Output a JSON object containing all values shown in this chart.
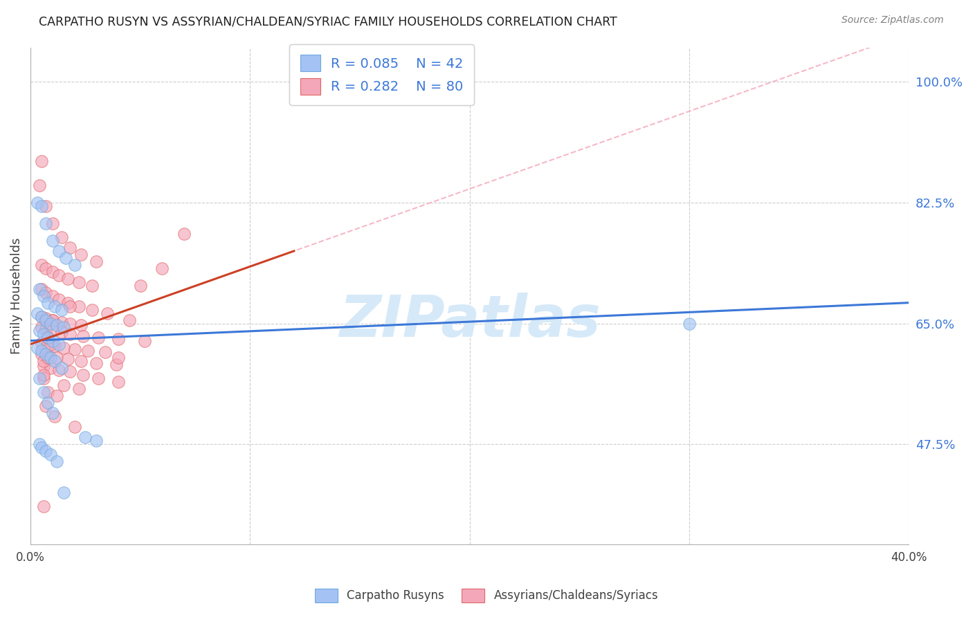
{
  "title": "CARPATHO RUSYN VS ASSYRIAN/CHALDEAN/SYRIAC FAMILY HOUSEHOLDS CORRELATION CHART",
  "source": "Source: ZipAtlas.com",
  "ylabel": "Family Households",
  "xlim": [
    0.0,
    40.0
  ],
  "ylim": [
    33.0,
    105.0
  ],
  "yticks": [
    47.5,
    65.0,
    82.5,
    100.0
  ],
  "blue_R": 0.085,
  "blue_N": 42,
  "pink_R": 0.282,
  "pink_N": 80,
  "blue_color": "#a4c2f4",
  "pink_color": "#f4a7b9",
  "blue_edge_color": "#6fa8dc",
  "pink_edge_color": "#e06666",
  "blue_line_color": "#3c78d8",
  "pink_line_color": "#cc4125",
  "pink_dash_color": "#f4a7b9",
  "watermark_color": "#d6e9f8",
  "figsize": [
    14.06,
    8.92
  ],
  "dpi": 100,
  "blue_x": [
    0.3,
    0.5,
    0.7,
    1.0,
    1.3,
    1.6,
    2.0,
    0.4,
    0.6,
    0.8,
    1.1,
    1.4,
    0.3,
    0.5,
    0.7,
    0.9,
    1.2,
    1.5,
    0.4,
    0.6,
    0.8,
    1.0,
    1.3,
    0.3,
    0.5,
    0.7,
    0.9,
    1.1,
    1.4,
    0.4,
    0.6,
    0.8,
    1.0,
    2.5,
    3.0,
    0.4,
    0.5,
    0.7,
    0.9,
    1.2,
    1.5,
    30.0
  ],
  "blue_y": [
    82.5,
    82.0,
    79.5,
    77.0,
    75.5,
    74.5,
    73.5,
    70.0,
    69.0,
    68.0,
    67.5,
    67.0,
    66.5,
    66.0,
    65.5,
    65.0,
    64.8,
    64.5,
    64.0,
    63.5,
    63.0,
    62.5,
    62.0,
    61.5,
    61.0,
    60.5,
    60.0,
    59.5,
    58.5,
    57.0,
    55.0,
    53.5,
    52.0,
    48.5,
    48.0,
    47.5,
    47.0,
    46.5,
    46.0,
    45.0,
    40.5,
    65.0
  ],
  "pink_x": [
    0.5,
    0.4,
    0.7,
    1.0,
    1.4,
    1.8,
    2.3,
    3.0,
    0.5,
    0.7,
    1.0,
    1.3,
    1.7,
    2.2,
    2.8,
    0.5,
    0.7,
    1.0,
    1.3,
    1.7,
    2.2,
    2.8,
    3.5,
    0.5,
    0.7,
    1.0,
    1.4,
    1.8,
    2.3,
    0.5,
    0.7,
    1.0,
    1.4,
    1.8,
    2.4,
    3.1,
    4.0,
    5.2,
    0.5,
    0.8,
    1.1,
    1.5,
    2.0,
    2.6,
    3.4,
    0.5,
    0.8,
    1.2,
    1.7,
    2.3,
    3.0,
    3.9,
    5.0,
    0.6,
    0.9,
    1.3,
    1.8,
    2.4,
    3.1,
    4.0,
    1.5,
    2.2,
    0.8,
    1.2,
    0.7,
    1.1,
    2.0,
    0.6,
    0.9,
    4.5,
    1.8,
    6.0,
    0.6,
    1.0,
    0.8,
    0.6,
    7.0,
    0.8,
    4.0,
    0.6
  ],
  "pink_y": [
    88.5,
    85.0,
    82.0,
    79.5,
    77.5,
    76.0,
    75.0,
    74.0,
    73.5,
    73.0,
    72.5,
    72.0,
    71.5,
    71.0,
    70.5,
    70.0,
    69.5,
    69.0,
    68.5,
    68.0,
    67.5,
    67.0,
    66.5,
    66.0,
    65.8,
    65.5,
    65.2,
    65.0,
    64.8,
    64.5,
    64.2,
    64.0,
    63.8,
    63.5,
    63.2,
    63.0,
    62.8,
    62.5,
    62.2,
    62.0,
    61.8,
    61.5,
    61.2,
    61.0,
    60.8,
    60.5,
    60.2,
    60.0,
    59.8,
    59.5,
    59.2,
    59.0,
    70.5,
    58.8,
    58.5,
    58.2,
    58.0,
    57.5,
    57.0,
    56.5,
    56.0,
    55.5,
    55.0,
    54.5,
    53.0,
    51.5,
    50.0,
    57.0,
    62.0,
    65.5,
    67.5,
    73.0,
    59.5,
    65.5,
    60.0,
    57.5,
    78.0,
    63.0,
    60.0,
    38.5
  ]
}
